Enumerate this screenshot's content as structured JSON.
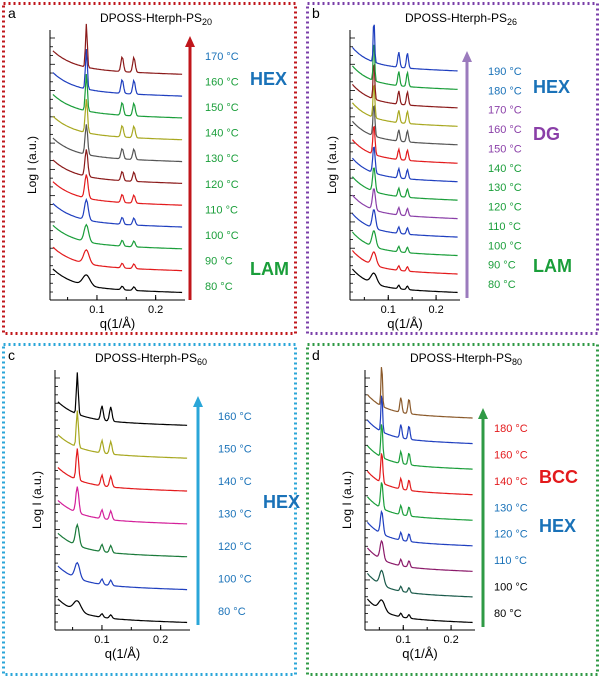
{
  "figure": {
    "panels": [
      {
        "letter": "a",
        "title": "DPOSS-Hterph-PS",
        "title_sub": "20",
        "border_color": "#c0161b",
        "arrow_color": "#c0161b",
        "ylabel": "Log I (a.u.)",
        "xlabel": "q(1/Å)",
        "xticks": [
          "0.1",
          "0.2"
        ],
        "temps": [
          "80 °C",
          "90 °C",
          "100 °C",
          "110 °C",
          "120 °C",
          "130 °C",
          "140 °C",
          "150 °C",
          "160 °C",
          "170 °C"
        ],
        "temp_colors": [
          "#1a9e3a",
          "#1a9e3a",
          "#1a9e3a",
          "#1a9e3a",
          "#1a9e3a",
          "#1a9e3a",
          "#1a9e3a",
          "#1a9e3a",
          "#1a9e3a",
          "#1a72b8"
        ],
        "phases": [
          {
            "text": "HEX",
            "color": "#1a72b8"
          },
          {
            "text": "LAM",
            "color": "#1a9e3a"
          }
        ],
        "curve_colors": [
          "#000000",
          "#e31a1c",
          "#1a9e3a",
          "#1f3fbf",
          "#e31a1c",
          "#8b1a1a",
          "#555555",
          "#a8a820",
          "#1a9e3a",
          "#1f3fbf",
          "#8b1a1a"
        ],
        "peaks": [
          0.082,
          0.143,
          0.163
        ]
      },
      {
        "letter": "b",
        "title": "DPOSS-Hterph-PS",
        "title_sub": "26",
        "border_color": "#7a3fa8",
        "arrow_color": "#9b7bbd",
        "ylabel": "Log I (a.u.)",
        "xlabel": "q(1/Å)",
        "xticks": [
          "0.1",
          "0.2"
        ],
        "temps": [
          "80 °C",
          "90 °C",
          "100 °C",
          "110 °C",
          "120 °C",
          "130 °C",
          "140 °C",
          "150 °C",
          "160 °C",
          "170 °C",
          "180 °C",
          "190 °C"
        ],
        "temp_colors": [
          "#1a9e3a",
          "#1a9e3a",
          "#1a9e3a",
          "#1a9e3a",
          "#1a9e3a",
          "#1a9e3a",
          "#1a9e3a",
          "#8a3fa8",
          "#8a3fa8",
          "#8a3fa8",
          "#1a72b8",
          "#1a72b8"
        ],
        "phases": [
          {
            "text": "HEX",
            "color": "#1a72b8"
          },
          {
            "text": "DG",
            "color": "#8a3fa8"
          },
          {
            "text": "LAM",
            "color": "#1a9e3a"
          }
        ],
        "curve_colors": [
          "#000000",
          "#e31a1c",
          "#1a9e3a",
          "#1f3fbf",
          "#8a3fa8",
          "#1a9e3a",
          "#1f3fbf",
          "#e31a1c",
          "#555555",
          "#a8a820",
          "#8b1a1a",
          "#1a9e3a",
          "#1f3fbf"
        ],
        "peaks": [
          0.07,
          0.122,
          0.14
        ]
      },
      {
        "letter": "c",
        "title": "DPOSS-Hterph-PS",
        "title_sub": "60",
        "border_color": "#2aa6d8",
        "arrow_color": "#2aa6d8",
        "ylabel": "Log I (a.u.)",
        "xlabel": "q(1/Å)",
        "xticks": [
          "0.1",
          "0.2"
        ],
        "temps": [
          "80 °C",
          "100 °C",
          "120 °C",
          "130 °C",
          "140 °C",
          "150 °C",
          "160 °C"
        ],
        "temp_colors": [
          "#1a72b8",
          "#1a72b8",
          "#1a72b8",
          "#1a72b8",
          "#1a72b8",
          "#1a72b8",
          "#1a72b8"
        ],
        "phases": [
          {
            "text": "HEX",
            "color": "#1a72b8"
          }
        ],
        "curve_colors": [
          "#000000",
          "#1f3fbf",
          "#1a7a3a",
          "#d4209a",
          "#e31a1c",
          "#a8a820",
          "#000000"
        ],
        "peaks": [
          0.058,
          0.1,
          0.115
        ]
      },
      {
        "letter": "d",
        "title": "DPOSS-Hterph-PS",
        "title_sub": "80",
        "border_color": "#2f9a45",
        "arrow_color": "#2f9a45",
        "ylabel": "Log I (a.u.)",
        "xlabel": "q(1/Å)",
        "xticks": [
          "0.1",
          "0.2"
        ],
        "temps": [
          "80 °C",
          "100 °C",
          "110 °C",
          "120 °C",
          "130 °C",
          "140 °C",
          "160 °C",
          "180 °C"
        ],
        "temp_colors": [
          "#000000",
          "#000000",
          "#1a72b8",
          "#1a72b8",
          "#1a72b8",
          "#e31a1c",
          "#e31a1c",
          "#e31a1c"
        ],
        "phases": [
          {
            "text": "BCC",
            "color": "#e31a1c"
          },
          {
            "text": "HEX",
            "color": "#1a72b8"
          }
        ],
        "curve_colors": [
          "#000000",
          "#1a5a4a",
          "#8b1a6a",
          "#1f3fbf",
          "#1a9e3a",
          "#e31a1c",
          "#1a9e3a",
          "#1f3fbf",
          "#8b5a2b"
        ],
        "peaks": [
          0.055,
          0.095,
          0.112
        ]
      }
    ]
  }
}
